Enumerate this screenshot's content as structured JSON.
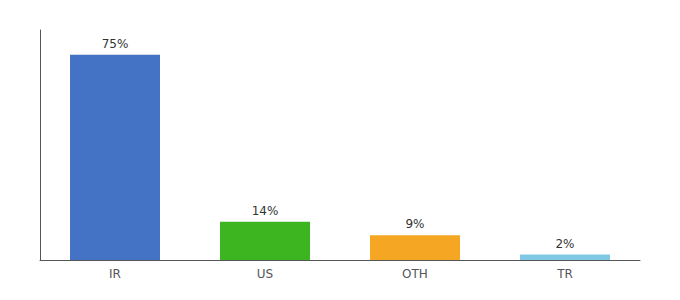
{
  "chart_data": {
    "type": "bar",
    "categories": [
      "IR",
      "US",
      "OTH",
      "TR"
    ],
    "values": [
      75,
      14,
      9,
      2
    ],
    "value_labels": [
      "75%",
      "14%",
      "9%",
      "2%"
    ],
    "colors": [
      "#4472c4",
      "#3cb521",
      "#f5a623",
      "#7ec8e3"
    ],
    "ylim": [
      0,
      84
    ],
    "grid": false,
    "data_labels": true,
    "tick_labels": "x"
  }
}
